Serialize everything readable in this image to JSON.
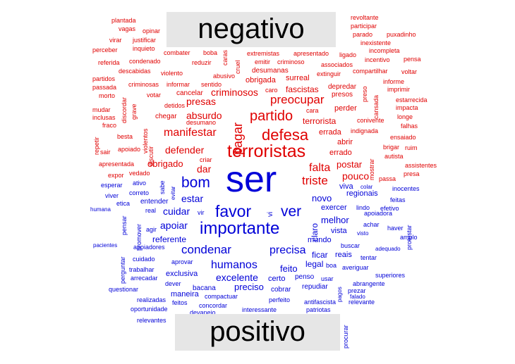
{
  "labels": {
    "negative": "negativo",
    "positive": "positivo"
  },
  "colors": {
    "negative": "#e00000",
    "positive": "#0000d8",
    "label_bg": "#e6e6e6"
  },
  "words": [
    [
      "plantada",
      "n"
    ],
    [
      "vagas",
      "n"
    ],
    [
      "opinar",
      "n"
    ],
    [
      "virar",
      "n"
    ],
    [
      "justificar",
      "n"
    ],
    [
      "perceber",
      "n"
    ],
    [
      "inquieto",
      "n"
    ],
    [
      "revoltante",
      "n"
    ],
    [
      "participar",
      "n"
    ],
    [
      "parado",
      "n"
    ],
    [
      "puxadinho",
      "n"
    ],
    [
      "inexistente",
      "n"
    ],
    [
      "incompleta",
      "n"
    ],
    [
      "combater",
      "n"
    ],
    [
      "boba",
      "n"
    ],
    [
      "caras",
      "n"
    ],
    [
      "extremistas",
      "n"
    ],
    [
      "apresentado",
      "n"
    ],
    [
      "ligado",
      "n"
    ],
    [
      "incentivo",
      "n"
    ],
    [
      "pensa",
      "n"
    ],
    [
      "referida",
      "n"
    ],
    [
      "condenado",
      "n"
    ],
    [
      "reduzir",
      "n"
    ],
    [
      "cruel",
      "n"
    ],
    [
      "emitir",
      "n"
    ],
    [
      "criminoso",
      "n"
    ],
    [
      "associados",
      "n"
    ],
    [
      "compartilhar",
      "n"
    ],
    [
      "voltar",
      "n"
    ],
    [
      "descabidas",
      "n"
    ],
    [
      "violento",
      "n"
    ],
    [
      "desumanas",
      "n"
    ],
    [
      "extinguir",
      "n"
    ],
    [
      "partidos",
      "n"
    ],
    [
      "abusivo",
      "n"
    ],
    [
      "obrigada",
      "n"
    ],
    [
      "surreal",
      "n"
    ],
    [
      "criminosas",
      "n"
    ],
    [
      "informar",
      "n"
    ],
    [
      "sentido",
      "n"
    ],
    [
      "fascistas",
      "n"
    ],
    [
      "depredar",
      "n"
    ],
    [
      "informe",
      "n"
    ],
    [
      "passada",
      "n"
    ],
    [
      "criminosos",
      "n"
    ],
    [
      "caro",
      "n"
    ],
    [
      "presos",
      "n"
    ],
    [
      "imprimir",
      "n"
    ],
    [
      "morto",
      "n"
    ],
    [
      "discordar",
      "n"
    ],
    [
      "votar",
      "n"
    ],
    [
      "cancelar",
      "n"
    ],
    [
      "preso",
      "n"
    ],
    [
      "cansada",
      "n"
    ],
    [
      "mudar",
      "n"
    ],
    [
      "grave",
      "n"
    ],
    [
      "detidos",
      "n"
    ],
    [
      "presas",
      "n"
    ],
    [
      "preocupar",
      "n"
    ],
    [
      "estarrecida",
      "n"
    ],
    [
      "inclusas",
      "n"
    ],
    [
      "pagar",
      "n"
    ],
    [
      "impacta",
      "n"
    ],
    [
      "chegar",
      "n"
    ],
    [
      "absurdo",
      "n"
    ],
    [
      "partido",
      "n"
    ],
    [
      "perder",
      "n"
    ],
    [
      "longe",
      "n"
    ],
    [
      "repetir",
      "n"
    ],
    [
      "fraco",
      "n"
    ],
    [
      "violentos",
      "n"
    ],
    [
      "desumano",
      "n"
    ],
    [
      "cara",
      "n"
    ],
    [
      "terrorista",
      "n"
    ],
    [
      "conivente",
      "n"
    ],
    [
      "falhas",
      "n"
    ],
    [
      "manifestar",
      "n"
    ],
    [
      "defesa",
      "n"
    ],
    [
      "errada",
      "n"
    ],
    [
      "indignada",
      "n"
    ],
    [
      "besta",
      "n"
    ],
    [
      "ensaiado",
      "n"
    ],
    [
      "discutir",
      "n"
    ],
    [
      "abrir",
      "n"
    ],
    [
      "mostrar",
      "n"
    ],
    [
      "brigar",
      "n"
    ],
    [
      "ruim",
      "n"
    ],
    [
      "sair",
      "n"
    ],
    [
      "apoiado",
      "n"
    ],
    [
      "defender",
      "n"
    ],
    [
      "terroristas",
      "n"
    ],
    [
      "errado",
      "n"
    ],
    [
      "autista",
      "n"
    ],
    [
      "criar",
      "n"
    ],
    [
      "apresentada",
      "n"
    ],
    [
      "obrigado",
      "n"
    ],
    [
      "postar",
      "n"
    ],
    [
      "assistentes",
      "n"
    ],
    [
      "falta",
      "n"
    ],
    [
      "expor",
      "n"
    ],
    [
      "vedado",
      "n"
    ],
    [
      "presa",
      "n"
    ],
    [
      "triste",
      "n"
    ],
    [
      "dar",
      "n"
    ],
    [
      "pouco",
      "n"
    ],
    [
      "passa",
      "n"
    ],
    [
      "ser",
      "p"
    ],
    [
      "bom",
      "p"
    ],
    [
      "sabe",
      "p"
    ],
    [
      "evitar",
      "p"
    ],
    [
      "esperar",
      "p"
    ],
    [
      "ativo",
      "p"
    ],
    [
      "colar",
      "p"
    ],
    [
      "viva",
      "p"
    ],
    [
      "inocentes",
      "p"
    ],
    [
      "viver",
      "p"
    ],
    [
      "correto",
      "p"
    ],
    [
      "regionais",
      "p"
    ],
    [
      "novo",
      "p"
    ],
    [
      "estar",
      "p"
    ],
    [
      "feitas",
      "p"
    ],
    [
      "etica",
      "p"
    ],
    [
      "entender",
      "p"
    ],
    [
      "lindo",
      "p"
    ],
    [
      "efetivo",
      "p"
    ],
    [
      "humana",
      "p"
    ],
    [
      "real",
      "p"
    ],
    [
      "cuidar",
      "p"
    ],
    [
      "favor",
      "p"
    ],
    [
      "vir",
      "p"
    ],
    [
      "exercer",
      "p"
    ],
    [
      "apoiadora",
      "p"
    ],
    [
      "pensar",
      "p"
    ],
    [
      "ver",
      "p"
    ],
    [
      "vi",
      "p"
    ],
    [
      "melhor",
      "p"
    ],
    [
      "protestar",
      "p"
    ],
    [
      "apoiar",
      "p"
    ],
    [
      "importante",
      "p"
    ],
    [
      "achar",
      "p"
    ],
    [
      "haver",
      "p"
    ],
    [
      "promover",
      "p"
    ],
    [
      "agir",
      "p"
    ],
    [
      "claro",
      "p"
    ],
    [
      "vista",
      "p"
    ],
    [
      "visto",
      "p"
    ],
    [
      "amplo",
      "p"
    ],
    [
      "referente",
      "p"
    ],
    [
      "mundo",
      "p"
    ],
    [
      "buscar",
      "p"
    ],
    [
      "pacientes",
      "p"
    ],
    [
      "apoiadores",
      "p"
    ],
    [
      "condenar",
      "p"
    ],
    [
      "precisa",
      "p"
    ],
    [
      "adequado",
      "p"
    ],
    [
      "ficar",
      "p"
    ],
    [
      "reais",
      "p"
    ],
    [
      "tentar",
      "p"
    ],
    [
      "perguntar",
      "p"
    ],
    [
      "cuidado",
      "p"
    ],
    [
      "aprovar",
      "p"
    ],
    [
      "humanos",
      "p"
    ],
    [
      "feito",
      "p"
    ],
    [
      "legal",
      "p"
    ],
    [
      "boa",
      "p"
    ],
    [
      "averiguar",
      "p"
    ],
    [
      "trabalhar",
      "p"
    ],
    [
      "exclusiva",
      "p"
    ],
    [
      "excelente",
      "p"
    ],
    [
      "certo",
      "p"
    ],
    [
      "penso",
      "p"
    ],
    [
      "usar",
      "p"
    ],
    [
      "pagos",
      "p"
    ],
    [
      "superiores",
      "p"
    ],
    [
      "arrecadar",
      "p"
    ],
    [
      "dever",
      "p"
    ],
    [
      "preciso",
      "p"
    ],
    [
      "repudiar",
      "p"
    ],
    [
      "abrangente",
      "p"
    ],
    [
      "questionar",
      "p"
    ],
    [
      "bacana",
      "p"
    ],
    [
      "cobrar",
      "p"
    ],
    [
      "falado",
      "p"
    ],
    [
      "prezar",
      "p"
    ],
    [
      "maneira",
      "p"
    ],
    [
      "compactuar",
      "p"
    ],
    [
      "realizadas",
      "p"
    ],
    [
      "perfeito",
      "p"
    ],
    [
      "antifascista",
      "p"
    ],
    [
      "relevante",
      "p"
    ],
    [
      "feitos",
      "p"
    ],
    [
      "concordar",
      "p"
    ],
    [
      "oportunidade",
      "p"
    ],
    [
      "devaneio",
      "p"
    ],
    [
      "interessante",
      "p"
    ],
    [
      "patriotas",
      "p"
    ],
    [
      "procurar",
      "p"
    ],
    [
      "relevantes",
      "p"
    ]
  ]
}
